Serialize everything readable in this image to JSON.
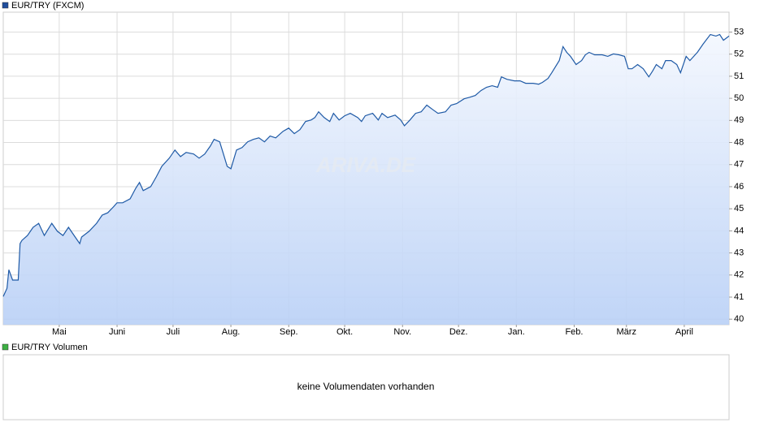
{
  "chart_data": {
    "type": "line",
    "title": "EUR/TRY (FXCM)",
    "watermark": "ARIVA.DE",
    "x": [
      0,
      2,
      3,
      5,
      8,
      9,
      10,
      13,
      16,
      19,
      22,
      26,
      29,
      32,
      35,
      38,
      41,
      42,
      46,
      50,
      53,
      56,
      59,
      61,
      64,
      68,
      71,
      73,
      75,
      79,
      82,
      85,
      89,
      92,
      95,
      98,
      102,
      105,
      108,
      111,
      113,
      116,
      118,
      120,
      122,
      125,
      128,
      131,
      134,
      137,
      140,
      143,
      146,
      150,
      153,
      156,
      159,
      162,
      165,
      167,
      169,
      172,
      175,
      177,
      180,
      183,
      186,
      190,
      192,
      194,
      198,
      201,
      203,
      206,
      210,
      213,
      215,
      218,
      221,
      224,
      227,
      230,
      233,
      237,
      240,
      243,
      247,
      250,
      253,
      256,
      259,
      262,
      265,
      267,
      270,
      274,
      277,
      280,
      284,
      287,
      289,
      292,
      294,
      298,
      300,
      302,
      304,
      307,
      310,
      312,
      314,
      317,
      321,
      324,
      327,
      330,
      333,
      335,
      337,
      340,
      343,
      346,
      348,
      350,
      353,
      355,
      358,
      361,
      363,
      366,
      368,
      372,
      375,
      379,
      382,
      384,
      386,
      389
    ],
    "series": [
      {
        "name": "EUR/TRY (FXCM)",
        "color": "#1f5aa6",
        "values": [
          41.03,
          41.4,
          42.24,
          41.77,
          41.77,
          43.42,
          43.57,
          43.79,
          44.16,
          44.34,
          43.79,
          44.34,
          43.98,
          43.79,
          44.16,
          43.79,
          43.42,
          43.72,
          43.98,
          44.34,
          44.71,
          44.82,
          45.08,
          45.27,
          45.27,
          45.45,
          45.93,
          46.19,
          45.82,
          46.0,
          46.44,
          46.92,
          47.29,
          47.66,
          47.36,
          47.55,
          47.48,
          47.29,
          47.48,
          47.84,
          48.14,
          48.03,
          47.48,
          46.92,
          46.81,
          47.66,
          47.77,
          48.03,
          48.14,
          48.21,
          48.03,
          48.29,
          48.21,
          48.51,
          48.65,
          48.4,
          48.58,
          48.95,
          49.02,
          49.13,
          49.39,
          49.13,
          48.95,
          49.32,
          49.02,
          49.21,
          49.32,
          49.13,
          48.95,
          49.21,
          49.32,
          49.02,
          49.32,
          49.13,
          49.24,
          49.02,
          48.76,
          49.02,
          49.32,
          49.39,
          49.69,
          49.5,
          49.32,
          49.39,
          49.69,
          49.76,
          49.98,
          50.05,
          50.13,
          50.35,
          50.5,
          50.57,
          50.5,
          50.97,
          50.86,
          50.79,
          50.79,
          50.68,
          50.68,
          50.64,
          50.72,
          50.9,
          51.16,
          51.71,
          52.34,
          52.08,
          51.9,
          51.53,
          51.71,
          51.97,
          52.08,
          51.97,
          51.97,
          51.9,
          52.01,
          51.97,
          51.9,
          51.34,
          51.34,
          51.53,
          51.34,
          50.97,
          51.23,
          51.53,
          51.34,
          51.71,
          51.71,
          51.53,
          51.16,
          51.9,
          51.71,
          52.08,
          52.45,
          52.89,
          52.82,
          52.89,
          52.63,
          52.82
        ]
      }
    ],
    "xlim": [
      0,
      389
    ],
    "xticks": [
      {
        "value": 30,
        "label": "Mai"
      },
      {
        "value": 61,
        "label": "Juni"
      },
      {
        "value": 91,
        "label": "Juli"
      },
      {
        "value": 122,
        "label": "Aug."
      },
      {
        "value": 153,
        "label": "Sep."
      },
      {
        "value": 183,
        "label": "Okt."
      },
      {
        "value": 214,
        "label": "Nov."
      },
      {
        "value": 244,
        "label": "Dez."
      },
      {
        "value": 275,
        "label": "Jan."
      },
      {
        "value": 306,
        "label": "Feb."
      },
      {
        "value": 334,
        "label": "März"
      },
      {
        "value": 365,
        "label": "April"
      }
    ],
    "ylim": [
      39.75,
      53.9
    ],
    "yticks": [
      40,
      41,
      42,
      43,
      44,
      45,
      46,
      47,
      48,
      49,
      50,
      51,
      52,
      53
    ],
    "grid": true
  },
  "volume_panel": {
    "title": "EUR/TRY Volumen",
    "message": "keine Volumendaten vorhanden",
    "color": "#3cb043"
  }
}
